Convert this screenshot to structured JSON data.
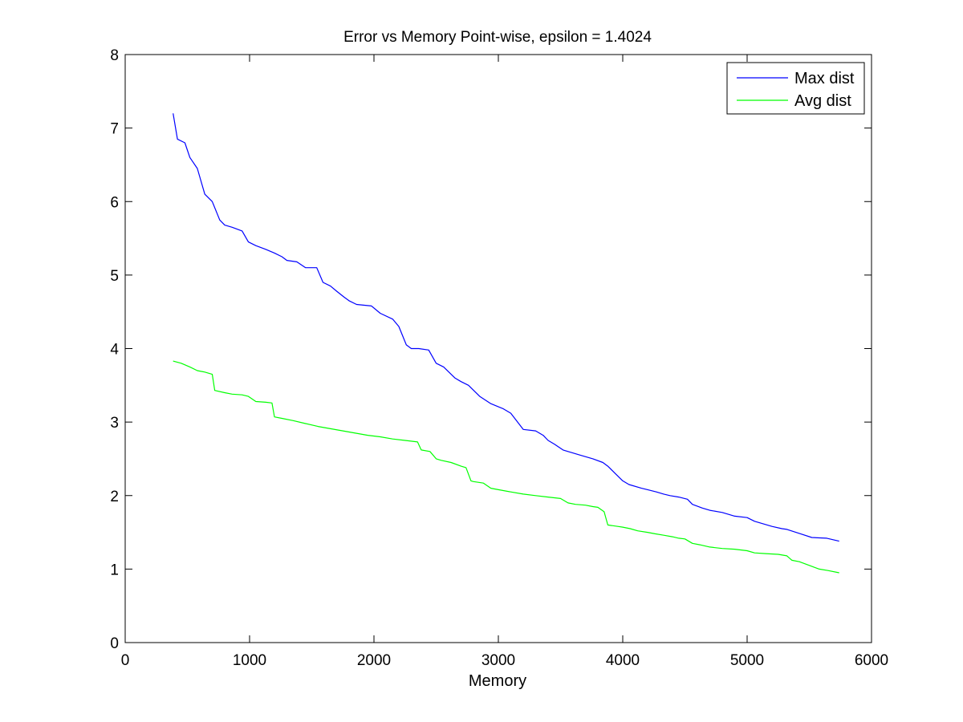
{
  "chart_data": {
    "type": "line",
    "title": "Error vs Memory Point-wise, epsilon = 1.4024",
    "xlabel": "Memory",
    "ylabel": "",
    "xlim": [
      0,
      6000
    ],
    "ylim": [
      0,
      8
    ],
    "xticks": [
      0,
      1000,
      2000,
      3000,
      4000,
      5000,
      6000
    ],
    "yticks": [
      0,
      1,
      2,
      3,
      4,
      5,
      6,
      7,
      8
    ],
    "grid": false,
    "legend_position": "top-right",
    "series": [
      {
        "name": "Max dist",
        "color": "#0000ff",
        "x": [
          385,
          420,
          480,
          520,
          580,
          640,
          700,
          760,
          800,
          860,
          940,
          990,
          1050,
          1130,
          1200,
          1260,
          1300,
          1380,
          1450,
          1540,
          1590,
          1650,
          1700,
          1760,
          1800,
          1860,
          1980,
          2050,
          2150,
          2200,
          2260,
          2300,
          2360,
          2440,
          2500,
          2560,
          2650,
          2700,
          2760,
          2850,
          2940,
          3040,
          3100,
          3200,
          3300,
          3360,
          3400,
          3450,
          3520,
          3560,
          3660,
          3760,
          3840,
          3880,
          3940,
          4000,
          4050,
          4150,
          4200,
          4270,
          4330,
          4380,
          4450,
          4520,
          4560,
          4640,
          4700,
          4800,
          4900,
          5000,
          5060,
          5200,
          5280,
          5320,
          5430,
          5520,
          5640,
          5740
        ],
        "y": [
          7.2,
          6.85,
          6.8,
          6.6,
          6.45,
          6.1,
          6.0,
          5.75,
          5.68,
          5.65,
          5.6,
          5.45,
          5.4,
          5.35,
          5.3,
          5.25,
          5.2,
          5.18,
          5.1,
          5.1,
          4.9,
          4.85,
          4.78,
          4.7,
          4.65,
          4.6,
          4.58,
          4.48,
          4.4,
          4.3,
          4.05,
          4.0,
          4.0,
          3.98,
          3.8,
          3.75,
          3.6,
          3.55,
          3.5,
          3.35,
          3.25,
          3.18,
          3.12,
          2.9,
          2.88,
          2.82,
          2.75,
          2.7,
          2.62,
          2.6,
          2.55,
          2.5,
          2.45,
          2.4,
          2.3,
          2.2,
          2.15,
          2.1,
          2.08,
          2.05,
          2.02,
          2.0,
          1.98,
          1.95,
          1.88,
          1.83,
          1.8,
          1.77,
          1.72,
          1.7,
          1.65,
          1.58,
          1.55,
          1.54,
          1.48,
          1.43,
          1.42,
          1.38
        ]
      },
      {
        "name": "Avg dist",
        "color": "#00ff00",
        "x": [
          385,
          450,
          520,
          580,
          640,
          700,
          720,
          800,
          860,
          940,
          990,
          1050,
          1130,
          1180,
          1200,
          1260,
          1350,
          1450,
          1550,
          1650,
          1750,
          1850,
          1950,
          2050,
          2150,
          2250,
          2350,
          2380,
          2450,
          2500,
          2540,
          2620,
          2700,
          2740,
          2780,
          2800,
          2880,
          2940,
          3000,
          3100,
          3200,
          3300,
          3400,
          3500,
          3560,
          3620,
          3700,
          3760,
          3800,
          3850,
          3880,
          3960,
          4000,
          4060,
          4120,
          4200,
          4260,
          4330,
          4400,
          4450,
          4500,
          4560,
          4620,
          4700,
          4800,
          4900,
          5000,
          5060,
          5150,
          5250,
          5320,
          5360,
          5420,
          5500,
          5580,
          5650,
          5740
        ],
        "y": [
          3.83,
          3.8,
          3.75,
          3.7,
          3.68,
          3.65,
          3.43,
          3.4,
          3.38,
          3.37,
          3.35,
          3.28,
          3.27,
          3.26,
          3.07,
          3.05,
          3.02,
          2.98,
          2.94,
          2.91,
          2.88,
          2.85,
          2.82,
          2.8,
          2.77,
          2.75,
          2.73,
          2.62,
          2.6,
          2.5,
          2.48,
          2.45,
          2.4,
          2.38,
          2.2,
          2.19,
          2.17,
          2.1,
          2.08,
          2.05,
          2.02,
          2.0,
          1.98,
          1.96,
          1.9,
          1.88,
          1.87,
          1.85,
          1.84,
          1.78,
          1.6,
          1.58,
          1.57,
          1.55,
          1.52,
          1.5,
          1.48,
          1.46,
          1.44,
          1.42,
          1.41,
          1.35,
          1.33,
          1.3,
          1.28,
          1.27,
          1.25,
          1.22,
          1.21,
          1.2,
          1.18,
          1.12,
          1.1,
          1.05,
          1.0,
          0.98,
          0.95
        ]
      }
    ]
  }
}
